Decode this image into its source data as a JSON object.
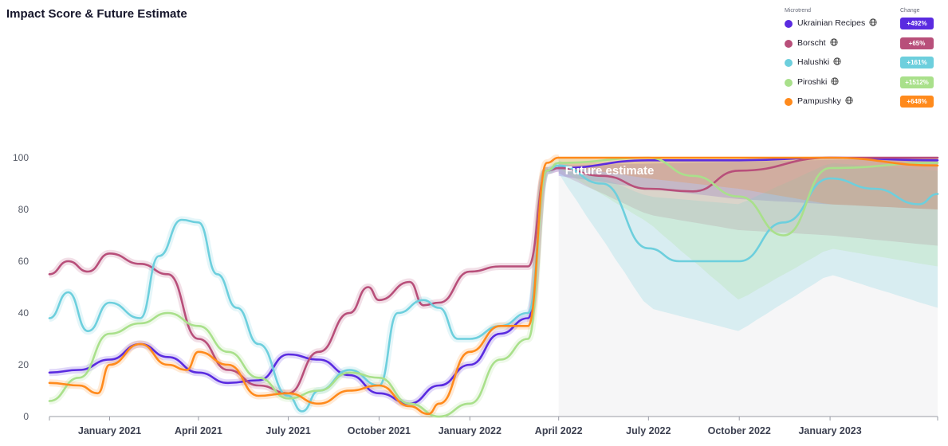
{
  "page": {
    "title": "Impact Score & Future Estimate"
  },
  "legend": {
    "header_microtrend": "Microtrend",
    "header_change": "Change",
    "items": [
      {
        "label": "Ukrainian Recipes",
        "change": "+492%",
        "color": "#5a2be0",
        "globe_icon": "globe-icon"
      },
      {
        "label": "Borscht",
        "change": "+65%",
        "color": "#b84f7a",
        "globe_icon": "globe-icon"
      },
      {
        "label": "Halushki",
        "change": "+161%",
        "color": "#6dcfdd",
        "globe_icon": "globe-icon"
      },
      {
        "label": "Piroshki",
        "change": "+1512%",
        "color": "#a9e08b",
        "globe_icon": "globe-icon"
      },
      {
        "label": "Pampushky",
        "change": "+648%",
        "color": "#ff8a1c",
        "globe_icon": "globe-icon"
      }
    ]
  },
  "chart_data": {
    "type": "line",
    "title": "Impact Score & Future Estimate",
    "ylim": [
      0,
      100
    ],
    "y_ticks": [
      "0",
      "20",
      "40",
      "60",
      "80",
      "100"
    ],
    "x_range": [
      "2020-11-01",
      "2023-04-20"
    ],
    "x_ticks": [
      {
        "label": "January 2021",
        "date": "2021-01-01"
      },
      {
        "label": "April 2021",
        "date": "2021-04-01"
      },
      {
        "label": "July 2021",
        "date": "2021-07-01"
      },
      {
        "label": "October 2021",
        "date": "2021-10-01"
      },
      {
        "label": "January 2022",
        "date": "2022-01-01"
      },
      {
        "label": "April 2022",
        "date": "2022-04-01"
      },
      {
        "label": "July 2022",
        "date": "2022-07-01"
      },
      {
        "label": "October 2022",
        "date": "2022-10-01"
      },
      {
        "label": "January 2023",
        "date": "2023-01-01"
      }
    ],
    "forecast_start": "2022-04-01",
    "forecast_label": "Future estimate",
    "grid": false,
    "legend_position": "top-right",
    "series": [
      {
        "name": "Ukrainian Recipes",
        "color": "#5a2be0",
        "points": [
          [
            "2020-11-01",
            17
          ],
          [
            "2020-12-01",
            18
          ],
          [
            "2021-01-01",
            22
          ],
          [
            "2021-02-01",
            28
          ],
          [
            "2021-03-01",
            23
          ],
          [
            "2021-04-01",
            17
          ],
          [
            "2021-05-01",
            13
          ],
          [
            "2021-06-01",
            14
          ],
          [
            "2021-07-01",
            24
          ],
          [
            "2021-08-01",
            22
          ],
          [
            "2021-09-01",
            16
          ],
          [
            "2021-10-01",
            9
          ],
          [
            "2021-11-01",
            5
          ],
          [
            "2021-12-01",
            12
          ],
          [
            "2022-01-01",
            20
          ],
          [
            "2022-02-01",
            32
          ],
          [
            "2022-03-01",
            38
          ],
          [
            "2022-03-20",
            95
          ],
          [
            "2022-04-01",
            96
          ]
        ],
        "forecast": [
          [
            "2022-04-01",
            96
          ],
          [
            "2022-07-01",
            99
          ],
          [
            "2022-10-01",
            99
          ],
          [
            "2023-01-01",
            100
          ],
          [
            "2023-04-20",
            99
          ]
        ],
        "band": {
          "upper": [
            [
              "2022-04-01",
              97
            ],
            [
              "2023-04-20",
              100
            ]
          ],
          "lower": [
            [
              "2022-04-01",
              93
            ],
            [
              "2022-07-01",
              88
            ],
            [
              "2022-10-01",
              84
            ],
            [
              "2023-01-01",
              82
            ],
            [
              "2023-04-20",
              80
            ]
          ]
        }
      },
      {
        "name": "Borscht",
        "color": "#b84f7a",
        "points": [
          [
            "2020-11-01",
            55
          ],
          [
            "2020-11-20",
            60
          ],
          [
            "2020-12-10",
            56
          ],
          [
            "2021-01-01",
            63
          ],
          [
            "2021-02-01",
            59
          ],
          [
            "2021-03-01",
            55
          ],
          [
            "2021-04-01",
            30
          ],
          [
            "2021-05-01",
            18
          ],
          [
            "2021-06-01",
            12
          ],
          [
            "2021-07-01",
            9
          ],
          [
            "2021-08-01",
            25
          ],
          [
            "2021-09-01",
            40
          ],
          [
            "2021-09-20",
            50
          ],
          [
            "2021-10-01",
            45
          ],
          [
            "2021-11-01",
            52
          ],
          [
            "2021-11-15",
            43
          ],
          [
            "2021-12-01",
            44
          ],
          [
            "2022-01-01",
            56
          ],
          [
            "2022-02-01",
            58
          ],
          [
            "2022-03-01",
            58
          ],
          [
            "2022-03-20",
            95
          ],
          [
            "2022-04-01",
            96
          ]
        ],
        "forecast": [
          [
            "2022-04-01",
            96
          ],
          [
            "2022-05-15",
            93
          ],
          [
            "2022-07-01",
            88
          ],
          [
            "2022-08-15",
            87
          ],
          [
            "2022-10-01",
            95
          ],
          [
            "2023-01-01",
            100
          ],
          [
            "2023-04-20",
            100
          ]
        ],
        "band": {
          "upper": [
            [
              "2022-04-01",
              98
            ],
            [
              "2023-04-20",
              100
            ]
          ],
          "lower": [
            [
              "2022-04-01",
              94
            ],
            [
              "2022-07-01",
              78
            ],
            [
              "2022-10-01",
              72
            ],
            [
              "2023-01-01",
              70
            ],
            [
              "2023-04-20",
              66
            ]
          ]
        }
      },
      {
        "name": "Halushki",
        "color": "#6dcfdd",
        "points": [
          [
            "2020-11-01",
            38
          ],
          [
            "2020-11-20",
            48
          ],
          [
            "2020-12-10",
            33
          ],
          [
            "2021-01-01",
            44
          ],
          [
            "2021-02-01",
            38
          ],
          [
            "2021-02-20",
            62
          ],
          [
            "2021-03-15",
            76
          ],
          [
            "2021-04-01",
            75
          ],
          [
            "2021-04-20",
            55
          ],
          [
            "2021-05-10",
            42
          ],
          [
            "2021-06-01",
            28
          ],
          [
            "2021-07-01",
            8
          ],
          [
            "2021-07-15",
            2
          ],
          [
            "2021-08-01",
            10
          ],
          [
            "2021-09-01",
            18
          ],
          [
            "2021-10-01",
            12
          ],
          [
            "2021-10-20",
            40
          ],
          [
            "2021-11-15",
            45
          ],
          [
            "2021-12-01",
            42
          ],
          [
            "2021-12-20",
            30
          ],
          [
            "2022-01-01",
            30
          ],
          [
            "2022-02-01",
            35
          ],
          [
            "2022-03-01",
            40
          ],
          [
            "2022-03-20",
            95
          ],
          [
            "2022-04-01",
            97
          ]
        ],
        "forecast": [
          [
            "2022-04-01",
            97
          ],
          [
            "2022-05-15",
            90
          ],
          [
            "2022-07-01",
            65
          ],
          [
            "2022-08-01",
            60
          ],
          [
            "2022-10-01",
            60
          ],
          [
            "2022-11-15",
            75
          ],
          [
            "2023-01-01",
            92
          ],
          [
            "2023-02-15",
            88
          ],
          [
            "2023-04-01",
            82
          ],
          [
            "2023-04-20",
            86
          ]
        ],
        "band": {
          "upper": [
            [
              "2022-04-01",
              99
            ],
            [
              "2022-07-01",
              85
            ],
            [
              "2022-10-01",
              82
            ],
            [
              "2023-01-01",
              98
            ],
            [
              "2023-04-20",
              95
            ]
          ],
          "lower": [
            [
              "2022-04-01",
              94
            ],
            [
              "2022-07-01",
              42
            ],
            [
              "2022-10-01",
              33
            ],
            [
              "2023-01-01",
              55
            ],
            [
              "2023-04-20",
              42
            ]
          ]
        }
      },
      {
        "name": "Piroshki",
        "color": "#a9e08b",
        "points": [
          [
            "2020-11-01",
            6
          ],
          [
            "2020-12-01",
            15
          ],
          [
            "2021-01-01",
            32
          ],
          [
            "2021-02-01",
            36
          ],
          [
            "2021-03-01",
            40
          ],
          [
            "2021-04-01",
            35
          ],
          [
            "2021-05-01",
            25
          ],
          [
            "2021-06-01",
            15
          ],
          [
            "2021-07-01",
            7
          ],
          [
            "2021-08-01",
            10
          ],
          [
            "2021-09-01",
            17
          ],
          [
            "2021-10-01",
            15
          ],
          [
            "2021-11-01",
            5
          ],
          [
            "2021-12-01",
            0
          ],
          [
            "2022-01-01",
            5
          ],
          [
            "2022-02-01",
            22
          ],
          [
            "2022-03-01",
            30
          ],
          [
            "2022-03-20",
            95
          ],
          [
            "2022-04-01",
            98
          ]
        ],
        "forecast": [
          [
            "2022-04-01",
            98
          ],
          [
            "2022-07-01",
            100
          ],
          [
            "2022-08-15",
            93
          ],
          [
            "2022-10-01",
            85
          ],
          [
            "2022-11-15",
            70
          ],
          [
            "2023-01-01",
            96
          ],
          [
            "2023-04-20",
            98
          ]
        ],
        "band": {
          "upper": [
            [
              "2022-04-01",
              100
            ],
            [
              "2023-04-20",
              100
            ]
          ],
          "lower": [
            [
              "2022-04-01",
              96
            ],
            [
              "2022-07-01",
              75
            ],
            [
              "2022-10-01",
              45
            ],
            [
              "2023-01-01",
              65
            ],
            [
              "2023-04-20",
              58
            ]
          ]
        }
      },
      {
        "name": "Pampushky",
        "color": "#ff8a1c",
        "points": [
          [
            "2020-11-01",
            13
          ],
          [
            "2020-12-01",
            12
          ],
          [
            "2020-12-20",
            9
          ],
          [
            "2021-01-01",
            20
          ],
          [
            "2021-02-01",
            28
          ],
          [
            "2021-03-01",
            20
          ],
          [
            "2021-03-20",
            18
          ],
          [
            "2021-04-01",
            25
          ],
          [
            "2021-05-01",
            20
          ],
          [
            "2021-06-01",
            8
          ],
          [
            "2021-07-01",
            9
          ],
          [
            "2021-08-01",
            5
          ],
          [
            "2021-09-01",
            10
          ],
          [
            "2021-10-01",
            12
          ],
          [
            "2021-11-01",
            4
          ],
          [
            "2021-11-20",
            1
          ],
          [
            "2021-12-01",
            5
          ],
          [
            "2022-01-01",
            25
          ],
          [
            "2022-02-01",
            35
          ],
          [
            "2022-03-01",
            35
          ],
          [
            "2022-03-20",
            98
          ],
          [
            "2022-04-01",
            100
          ]
        ],
        "forecast": [
          [
            "2022-04-01",
            100
          ],
          [
            "2022-07-01",
            100
          ],
          [
            "2022-10-01",
            100
          ],
          [
            "2023-01-01",
            100
          ],
          [
            "2023-04-20",
            97
          ]
        ],
        "band": {
          "upper": [
            [
              "2022-04-01",
              100
            ],
            [
              "2023-04-20",
              100
            ]
          ],
          "lower": [
            [
              "2022-04-01",
              97
            ],
            [
              "2022-07-01",
              92
            ],
            [
              "2022-10-01",
              88
            ],
            [
              "2023-01-01",
              82
            ],
            [
              "2023-04-20",
              80
            ]
          ]
        }
      }
    ]
  }
}
